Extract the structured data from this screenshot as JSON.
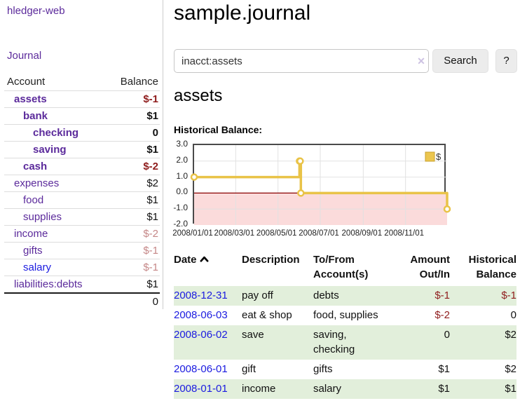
{
  "sidebar": {
    "app_title": "hledger-web",
    "nav": {
      "journal": "Journal"
    },
    "accounts_table": {
      "headers": {
        "account": "Account",
        "balance": "Balance"
      },
      "rows": [
        {
          "name": "assets",
          "balance": "$-1"
        },
        {
          "name": "bank",
          "balance": "$1"
        },
        {
          "name": "checking",
          "balance": "0"
        },
        {
          "name": "saving",
          "balance": "$1"
        },
        {
          "name": "cash",
          "balance": "$-2"
        },
        {
          "name": "expenses",
          "balance": "$2"
        },
        {
          "name": "food",
          "balance": "$1"
        },
        {
          "name": "supplies",
          "balance": "$1"
        },
        {
          "name": "income",
          "balance": "$-2"
        },
        {
          "name": "gifts",
          "balance": "$-1"
        },
        {
          "name": "salary",
          "balance": "$-1"
        },
        {
          "name": "liabilities:debts",
          "balance": "$1"
        }
      ],
      "total": "0"
    }
  },
  "header": {
    "title": "sample.journal"
  },
  "search": {
    "value": "inacct:assets",
    "clear_icon": "✕",
    "button_label": "Search",
    "help_label": "?"
  },
  "account_page": {
    "heading": "assets",
    "chart_label": "Historical Balance:"
  },
  "chart_data": {
    "type": "line",
    "title": "Historical Balance:",
    "series": [
      {
        "name": "$",
        "step": true,
        "points": [
          [
            "2008-01-01",
            1
          ],
          [
            "2008-06-01",
            2
          ],
          [
            "2008-06-02",
            2
          ],
          [
            "2008-06-03",
            0
          ],
          [
            "2008-12-31",
            -1
          ]
        ]
      }
    ],
    "xlim": [
      "2008-01-01",
      "2008-12-31"
    ],
    "ylim": [
      -2,
      3
    ],
    "x_ticks": [
      "2008/01/01",
      "2008/03/01",
      "2008/05/01",
      "2008/07/01",
      "2008/09/01",
      "2008/11/01"
    ],
    "y_ticks": [
      3.0,
      2.0,
      1.0,
      0.0,
      -1.0,
      -2.0
    ],
    "legend": {
      "label": "$",
      "position": "top-right"
    },
    "colors": {
      "line": "#e9c348",
      "marker_fill": "#ffffff",
      "negative_region": "#fbdbdb",
      "zero_line": "#8b0000",
      "grid": "#e2e2e2",
      "legend_swatch": "#ecc64f",
      "legend_border": "#c8a02c"
    }
  },
  "transactions": {
    "headers": {
      "date": "Date",
      "description": "Description",
      "accounts": "To/From Account(s)",
      "amount": "Amount Out/In",
      "balance": "Historical Balance"
    },
    "rows": [
      {
        "date": "2008-12-31",
        "description": "pay off",
        "accounts": "debts",
        "amount": "$-1",
        "balance": "$-1"
      },
      {
        "date": "2008-06-03",
        "description": "eat & shop",
        "accounts": "food, supplies",
        "amount": "$-2",
        "balance": "0"
      },
      {
        "date": "2008-06-02",
        "description": "save",
        "accounts": "saving, checking",
        "amount": "0",
        "balance": "$2"
      },
      {
        "date": "2008-06-01",
        "description": "gift",
        "accounts": "gifts",
        "amount": "$1",
        "balance": "$2"
      },
      {
        "date": "2008-01-01",
        "description": "income",
        "accounts": "salary",
        "amount": "$1",
        "balance": "$1"
      }
    ]
  }
}
